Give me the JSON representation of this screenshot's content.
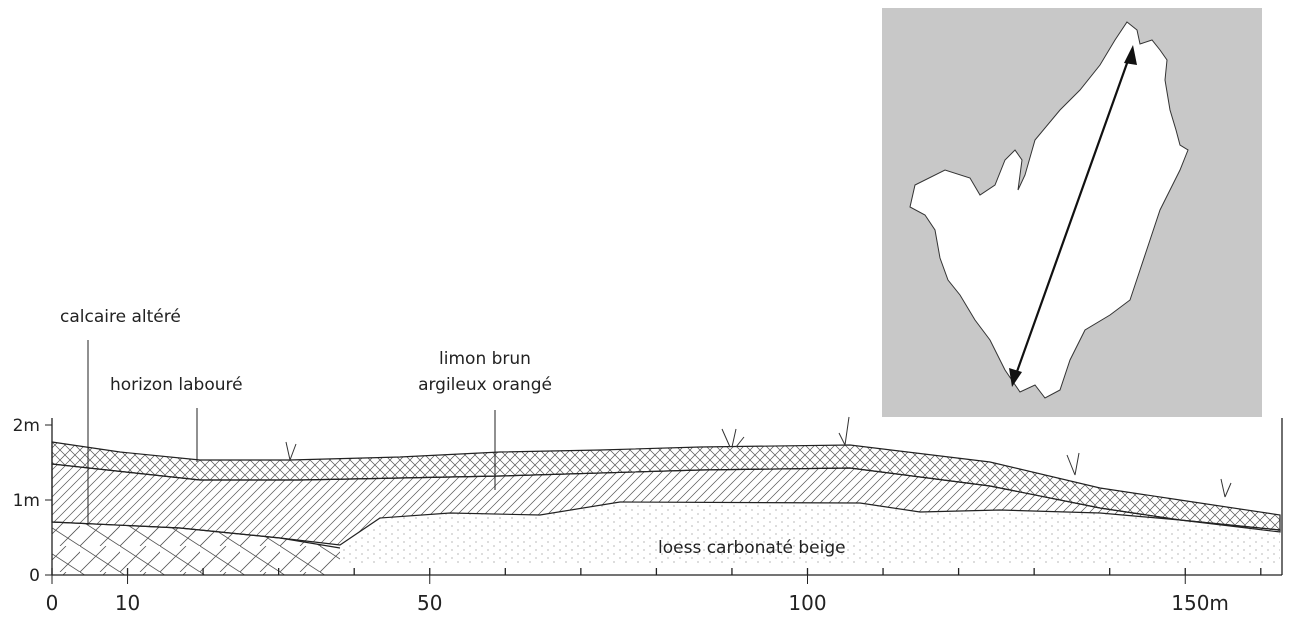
{
  "labels": {
    "calcaire": "calcaire altéré",
    "horizon": "horizon labouré",
    "limon_1": "limon brun",
    "limon_2": "argileux orangé",
    "loess": "loess carbonaté beige"
  },
  "x_axis": {
    "ticks": [
      {
        "value": 0,
        "label": "0"
      },
      {
        "value": 10,
        "label": "10"
      },
      {
        "value": 50,
        "label": "50"
      },
      {
        "value": 100,
        "label": "100"
      },
      {
        "value": 150,
        "label": "150m"
      }
    ]
  },
  "y_axis": {
    "ticks": [
      {
        "value": 0,
        "label": "0"
      },
      {
        "value": 1,
        "label": "1m"
      },
      {
        "value": 2,
        "label": "2m"
      }
    ]
  }
}
